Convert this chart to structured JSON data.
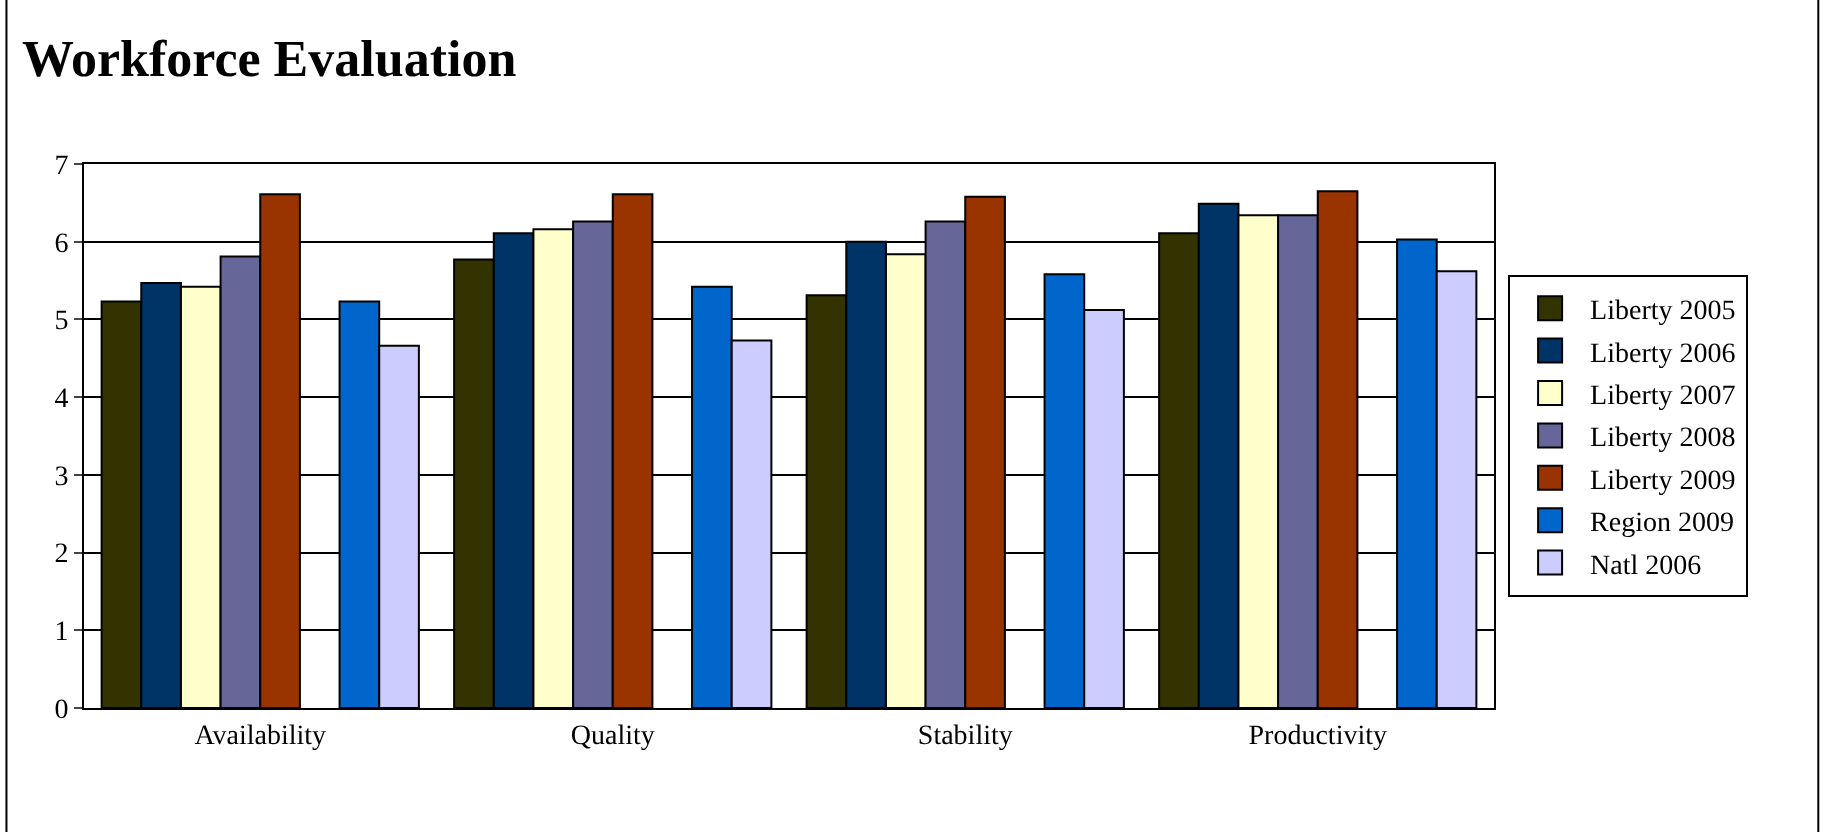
{
  "chart_data": {
    "type": "bar",
    "title": "Workforce Evaluation",
    "categories": [
      "Availability",
      "Quality",
      "Stability",
      "Productivity"
    ],
    "series": [
      {
        "name": "Liberty 2005",
        "color": "#333300",
        "values": [
          5.23,
          5.77,
          5.31,
          6.11
        ]
      },
      {
        "name": "Liberty 2006",
        "color": "#003366",
        "values": [
          5.47,
          6.11,
          6.0,
          6.49
        ]
      },
      {
        "name": "Liberty 2007",
        "color": "#ffffcc",
        "values": [
          5.42,
          6.16,
          5.84,
          6.34
        ]
      },
      {
        "name": "Liberty 2008",
        "color": "#666699",
        "values": [
          5.81,
          6.26,
          6.26,
          6.34
        ]
      },
      {
        "name": "Liberty 2009",
        "color": "#993300",
        "values": [
          6.61,
          6.61,
          6.58,
          6.65
        ]
      },
      {
        "color": "#ffffff",
        "values": [
          null,
          null,
          null,
          null
        ]
      },
      {
        "name": "Region 2009",
        "color": "#0066cc",
        "values": [
          5.23,
          5.42,
          5.58,
          6.03
        ]
      },
      {
        "name": "Natl 2006",
        "color": "#ccccff",
        "values": [
          4.66,
          4.73,
          5.12,
          5.62
        ]
      }
    ],
    "ylim": [
      0,
      7
    ],
    "yticks": [
      0,
      1,
      2,
      3,
      4,
      5,
      6,
      7
    ],
    "grid": "y",
    "legend": "right"
  }
}
